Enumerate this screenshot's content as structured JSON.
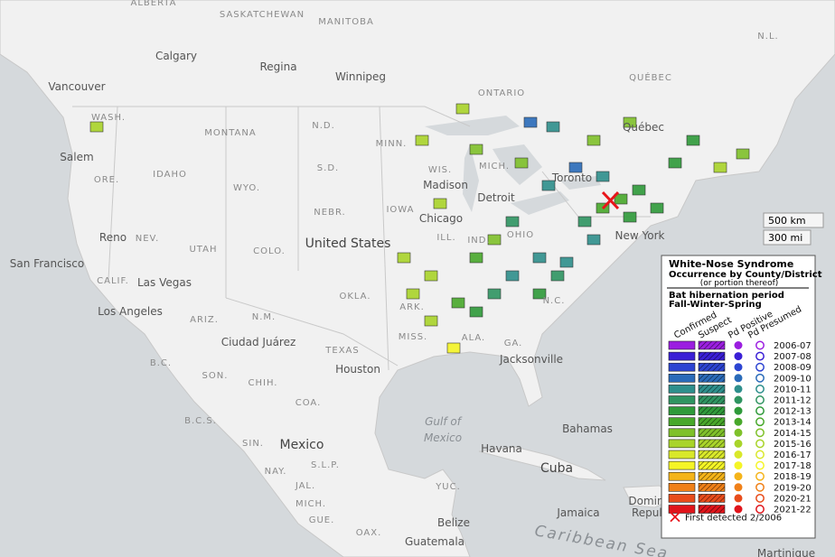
{
  "map": {
    "labels": [
      "ALBERTA",
      "SASKATCHEWAN",
      "MANITOBA",
      "N.L.",
      "Calgary",
      "Regina",
      "Winnipeg",
      "QUÉBEC",
      "Vancouver",
      "ONTARIO",
      "WASH.",
      "MONTANA",
      "N.D.",
      "MINN.",
      "Québec",
      "Salem",
      "IDAHO",
      "S.D.",
      "WIS.",
      "ORE.",
      "Madison",
      "WYO.",
      "MICH.",
      "Toronto",
      "Detroit",
      "NEBR.",
      "IOWA",
      "Chicago",
      "Reno",
      "NEV.",
      "UTAH",
      "COLO.",
      "United States",
      "ILL.",
      "IND.",
      "OHIO",
      "New York",
      "San Francisco",
      "CALIF.",
      "Las Vegas",
      "OKLA.",
      "N.C.",
      "Los Angeles",
      "ARIZ.",
      "N.M.",
      "ARK.",
      "Ciudad Juárez",
      "MISS.",
      "ALA.",
      "GA.",
      "TEXAS",
      "Jacksonville",
      "Houston",
      "B.C.",
      "SON.",
      "CHIH.",
      "COA.",
      "Bahamas",
      "B.C.S.",
      "SIN.",
      "Mexico",
      "Havana",
      "Cuba",
      "NAY.",
      "S.L.P.",
      "JAL.",
      "MICH.",
      "GUE.",
      "OAX.",
      "YUC.",
      "Jamaica",
      "Belize",
      "Guatemala",
      "Domin",
      "Repub",
      "Martinique"
    ],
    "gulf": [
      "Gulf of",
      "Mexico"
    ],
    "sea": "Caribbean Sea",
    "scale": [
      "500 km",
      "300 mi"
    ]
  },
  "legend": {
    "title": "White-Nose Syndrome",
    "subtitle": "Occurrence by County/District",
    "note": "(or portion thereof)",
    "period": "Bat hibernation period",
    "period_note": "Fall-Winter-Spring",
    "columns": [
      "Confirmed",
      "Suspect",
      "Pd Positive",
      "Pd Presumed"
    ],
    "seasons": [
      {
        "label": "2006-07",
        "color": "#9b1ee0"
      },
      {
        "label": "2007-08",
        "color": "#3a1fd6"
      },
      {
        "label": "2008-09",
        "color": "#2c44d2"
      },
      {
        "label": "2009-10",
        "color": "#2a6bb9"
      },
      {
        "label": "2010-11",
        "color": "#2e8f8c"
      },
      {
        "label": "2011-12",
        "color": "#2f9461"
      },
      {
        "label": "2012-13",
        "color": "#2f9a3a"
      },
      {
        "label": "2013-14",
        "color": "#48a82b"
      },
      {
        "label": "2014-15",
        "color": "#7fc12a"
      },
      {
        "label": "2015-16",
        "color": "#a9d42a"
      },
      {
        "label": "2016-17",
        "color": "#d9e82a"
      },
      {
        "label": "2017-18",
        "color": "#f5f526"
      },
      {
        "label": "2018-19",
        "color": "#f5b41a"
      },
      {
        "label": "2019-20",
        "color": "#f08018"
      },
      {
        "label": "2020-21",
        "color": "#e84c1b"
      },
      {
        "label": "2021-22",
        "color": "#e0141a"
      }
    ],
    "first_detected": "First detected 2/2006"
  }
}
